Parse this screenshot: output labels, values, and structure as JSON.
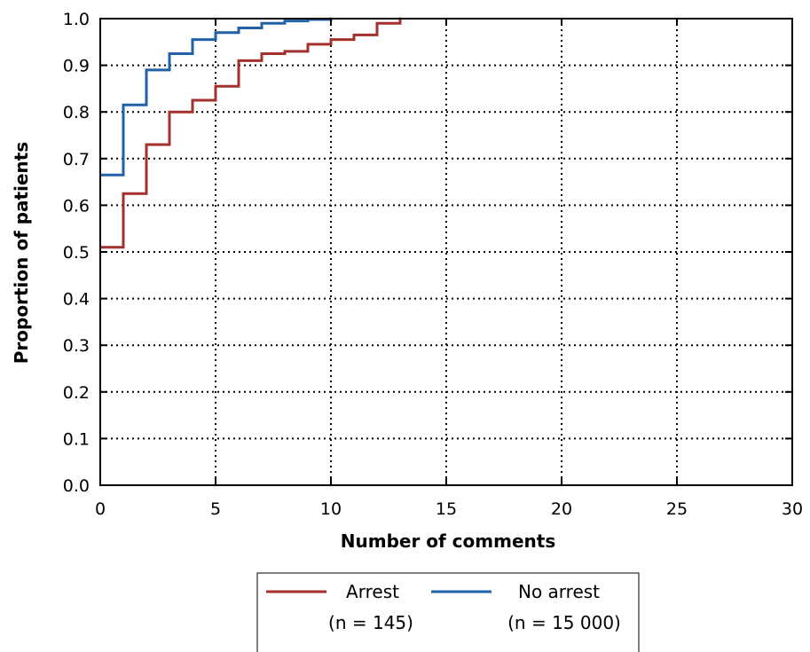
{
  "chart_data": {
    "type": "line",
    "step": true,
    "title": "",
    "xlabel": "Number of comments",
    "ylabel": "Proportion of patients",
    "xlim": [
      0,
      30
    ],
    "ylim": [
      0,
      1
    ],
    "xticks": [
      0,
      5,
      10,
      15,
      20,
      25,
      30
    ],
    "xtick_labels": [
      "0",
      "5",
      "10",
      "15",
      "20",
      "25",
      "30"
    ],
    "yticks": [
      0,
      0.1,
      0.2,
      0.3,
      0.4,
      0.5,
      0.6,
      0.7,
      0.8,
      0.9,
      1.0
    ],
    "ytick_labels": [
      "0.0",
      "0.1",
      "0.2",
      "0.3",
      "0.4",
      "0.5",
      "0.6",
      "0.7",
      "0.8",
      "0.9",
      "1.0"
    ],
    "grid": true,
    "legend_position": "bottom-center",
    "series": [
      {
        "name": "Arrest",
        "sample": "(n = 145)",
        "color": "#a3312e",
        "x": [
          0,
          1,
          2,
          3,
          4,
          5,
          6,
          7,
          8,
          9,
          10,
          11,
          12,
          13
        ],
        "y": [
          0.51,
          0.625,
          0.73,
          0.8,
          0.825,
          0.855,
          0.91,
          0.925,
          0.93,
          0.945,
          0.955,
          0.965,
          0.99,
          1.0
        ]
      },
      {
        "name": "No arrest",
        "sample": "(n = 15 000)",
        "color": "#1f62a8",
        "x": [
          0,
          1,
          2,
          3,
          4,
          5,
          6,
          7,
          8,
          9,
          10
        ],
        "y": [
          0.665,
          0.815,
          0.89,
          0.925,
          0.955,
          0.97,
          0.98,
          0.99,
          0.995,
          0.998,
          1.0
        ]
      }
    ]
  }
}
